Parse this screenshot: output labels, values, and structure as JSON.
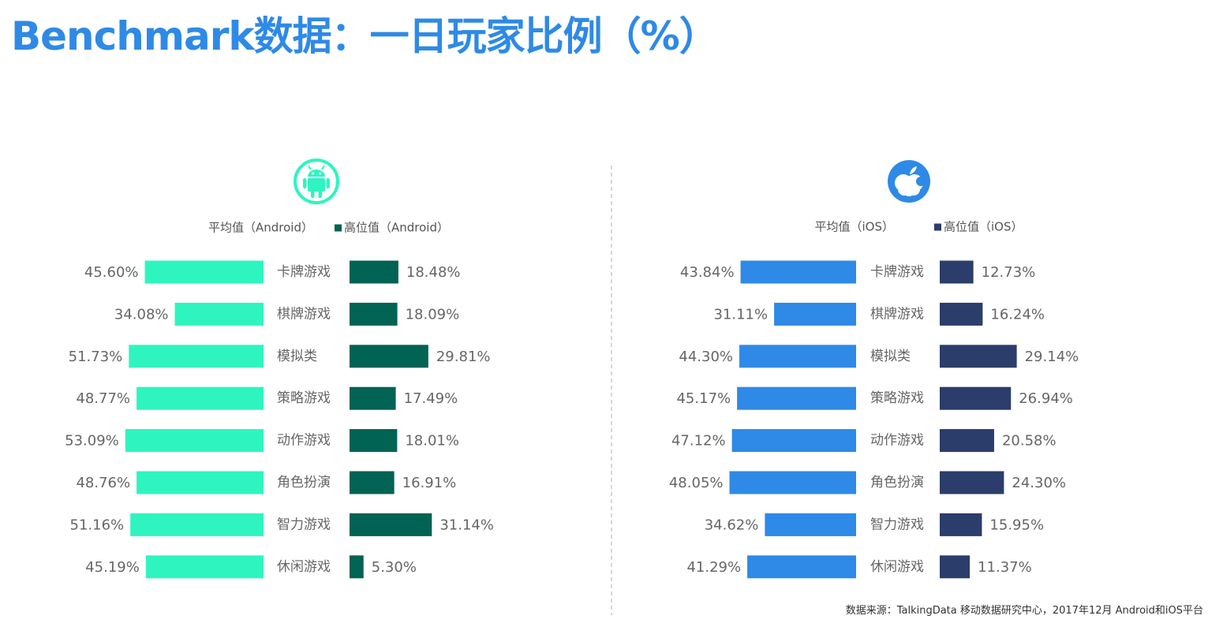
{
  "title": "Benchmark数据：一日玩家比例（%）",
  "source": "数据来源：TalkingData 移动数据研究中心，2017年12月 Android和iOS平台",
  "chart_data": [
    {
      "type": "bar",
      "platform_icon": "android-icon",
      "colors": {
        "avg": "#2ef5c0",
        "high": "#006353",
        "icon": "#2ef5c0"
      },
      "legend": {
        "avg": "平均值（Android）",
        "high": "高位值（Android）"
      },
      "categories": [
        "卡牌游戏",
        "棋牌游戏",
        "模拟类",
        "策略游戏",
        "动作游戏",
        "角色扮演",
        "智力游戏",
        "休闲游戏"
      ],
      "series": [
        {
          "name": "平均值（Android）",
          "values": [
            45.6,
            34.08,
            51.73,
            48.77,
            53.09,
            48.76,
            51.16,
            45.19
          ],
          "labels": [
            "45.60%",
            "34.08%",
            "51.73%",
            "48.77%",
            "53.09%",
            "48.76%",
            "51.16%",
            "45.19%"
          ]
        },
        {
          "name": "高位值（Android）",
          "values": [
            18.48,
            18.09,
            29.81,
            17.49,
            18.01,
            16.91,
            31.14,
            5.3
          ],
          "labels": [
            "18.48%",
            "18.09%",
            "29.81%",
            "17.49%",
            "18.01%",
            "16.91%",
            "31.14%",
            "5.30%"
          ]
        }
      ]
    },
    {
      "type": "bar",
      "platform_icon": "apple-icon",
      "colors": {
        "avg": "#2e8ae6",
        "high": "#2b3d6b",
        "icon": "#2e8ae6"
      },
      "legend": {
        "avg": "平均值（iOS）",
        "high": "高位值（iOS）"
      },
      "categories": [
        "卡牌游戏",
        "棋牌游戏",
        "模拟类",
        "策略游戏",
        "动作游戏",
        "角色扮演",
        "智力游戏",
        "休闲游戏"
      ],
      "series": [
        {
          "name": "平均值（iOS）",
          "values": [
            43.84,
            31.11,
            44.3,
            45.17,
            47.12,
            48.05,
            34.62,
            41.29
          ],
          "labels": [
            "43.84%",
            "31.11%",
            "44.30%",
            "45.17%",
            "47.12%",
            "48.05%",
            "34.62%",
            "41.29%"
          ]
        },
        {
          "name": "高位值（iOS）",
          "values": [
            12.73,
            16.24,
            29.14,
            26.94,
            20.58,
            24.3,
            15.95,
            11.37
          ],
          "labels": [
            "12.73%",
            "16.24%",
            "29.14%",
            "26.94%",
            "20.58%",
            "24.30%",
            "15.95%",
            "11.37%"
          ]
        }
      ]
    }
  ]
}
